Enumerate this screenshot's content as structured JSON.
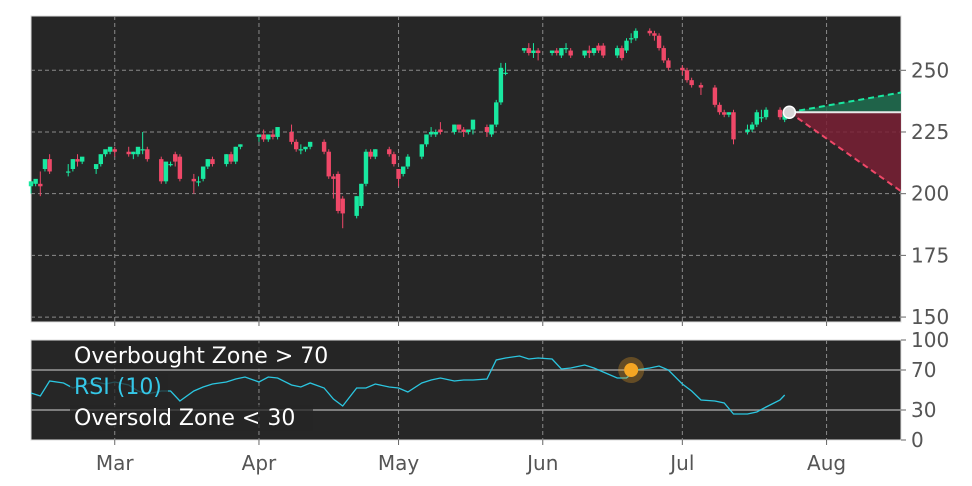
{
  "chart_data": [
    {
      "type": "candlestick",
      "panel": "price",
      "grid": true,
      "ylim": [
        148,
        272
      ],
      "xlim": [
        "2024-02-12",
        "2024-08-17"
      ],
      "y_ticks": [
        150,
        175,
        200,
        225,
        250
      ],
      "x_tick_labels": [
        {
          "date": "2024-03-01",
          "label": "Mar"
        },
        {
          "date": "2024-04-01",
          "label": "Apr"
        },
        {
          "date": "2024-05-01",
          "label": "May"
        },
        {
          "date": "2024-06-01",
          "label": "Jun"
        },
        {
          "date": "2024-07-01",
          "label": "Jul"
        },
        {
          "date": "2024-08-01",
          "label": "Aug"
        }
      ],
      "candles": [
        [
          "2024-02-12",
          203,
          205,
          200,
          204
        ],
        [
          "2024-02-13",
          204,
          206,
          203,
          205
        ],
        [
          "2024-02-14",
          204,
          203,
          209,
          199
        ],
        [
          "2024-02-15",
          210,
          214,
          209,
          213
        ],
        [
          "2024-02-16",
          214,
          209,
          216,
          208
        ],
        [
          "2024-02-20",
          209,
          209,
          212,
          207
        ],
        [
          "2024-02-21",
          210,
          214,
          209,
          214
        ],
        [
          "2024-02-22",
          214,
          213,
          216,
          211
        ],
        [
          "2024-02-23",
          213,
          215,
          212,
          214
        ],
        [
          "2024-02-26",
          210,
          212,
          208,
          211
        ],
        [
          "2024-02-27",
          212,
          216,
          211,
          216
        ],
        [
          "2024-02-28",
          216,
          218,
          215,
          217
        ],
        [
          "2024-02-29",
          217,
          219,
          216,
          218
        ],
        [
          "2024-03-01",
          218,
          217,
          219,
          215
        ],
        [
          "2024-03-04",
          217,
          216,
          219,
          215
        ],
        [
          "2024-03-05",
          216,
          217,
          214,
          217
        ],
        [
          "2024-03-06",
          216,
          219,
          215,
          218
        ],
        [
          "2024-03-07",
          218,
          218,
          225,
          216
        ],
        [
          "2024-03-08",
          218,
          214,
          219,
          213
        ],
        [
          "2024-03-11",
          214,
          205,
          215,
          204
        ],
        [
          "2024-03-12",
          205,
          213,
          204,
          212
        ],
        [
          "2024-03-13",
          212,
          212,
          213,
          211
        ],
        [
          "2024-03-14",
          216,
          213,
          217,
          211
        ],
        [
          "2024-03-15",
          215,
          206,
          216,
          205
        ],
        [
          "2024-03-18",
          206,
          205,
          208,
          200
        ],
        [
          "2024-03-19",
          205,
          205,
          207,
          203
        ],
        [
          "2024-03-20",
          206,
          211,
          205,
          211
        ],
        [
          "2024-03-21",
          211,
          214,
          210,
          214
        ],
        [
          "2024-03-22",
          214,
          212,
          215,
          211
        ],
        [
          "2024-03-25",
          212,
          216,
          211,
          216
        ],
        [
          "2024-03-26",
          216,
          213,
          217,
          212
        ],
        [
          "2024-03-27",
          213,
          219,
          212,
          219
        ],
        [
          "2024-03-28",
          219,
          220,
          218,
          220
        ],
        [
          "2024-04-01",
          223,
          224,
          221,
          224
        ],
        [
          "2024-04-02",
          224,
          222,
          226,
          221
        ],
        [
          "2024-04-03",
          222,
          224,
          221,
          223
        ],
        [
          "2024-04-04",
          224,
          223,
          226,
          222
        ],
        [
          "2024-04-05",
          223,
          227,
          222,
          226
        ],
        [
          "2024-04-08",
          225,
          221,
          228,
          220
        ],
        [
          "2024-04-09",
          221,
          218,
          222,
          217
        ],
        [
          "2024-04-10",
          218,
          218,
          220,
          216
        ],
        [
          "2024-04-11",
          218,
          219,
          217,
          219
        ],
        [
          "2024-04-12",
          219,
          221,
          218,
          221
        ],
        [
          "2024-04-15",
          221,
          217,
          222,
          216
        ],
        [
          "2024-04-16",
          217,
          207,
          218,
          206
        ],
        [
          "2024-04-17",
          207,
          206,
          208,
          198
        ],
        [
          "2024-04-18",
          208,
          193,
          209,
          192
        ],
        [
          "2024-04-19",
          198,
          192,
          199,
          186
        ],
        [
          "2024-04-22",
          191,
          199,
          190,
          199
        ],
        [
          "2024-04-23",
          195,
          204,
          194,
          204
        ],
        [
          "2024-04-24",
          204,
          217,
          203,
          218
        ],
        [
          "2024-04-25",
          217,
          215,
          218,
          214
        ],
        [
          "2024-04-26",
          215,
          218,
          214,
          218
        ],
        [
          "2024-04-29",
          218,
          216,
          219,
          215
        ],
        [
          "2024-04-30",
          216,
          212,
          217,
          211
        ],
        [
          "2024-05-01",
          210,
          206,
          210,
          203
        ],
        [
          "2024-05-02",
          208,
          211,
          207,
          210
        ],
        [
          "2024-05-03",
          211,
          215,
          210,
          216
        ],
        [
          "2024-05-06",
          215,
          220,
          214,
          220
        ],
        [
          "2024-05-07",
          220,
          224,
          219,
          224
        ],
        [
          "2024-05-08",
          224,
          225,
          223,
          227
        ],
        [
          "2024-05-09",
          224,
          225,
          223,
          226
        ],
        [
          "2024-05-10",
          226,
          225,
          229,
          224
        ],
        [
          "2024-05-13",
          225,
          228,
          224,
          228
        ],
        [
          "2024-05-14",
          228,
          226,
          228,
          225
        ],
        [
          "2024-05-15",
          226,
          225,
          227,
          223
        ],
        [
          "2024-05-16",
          225,
          226,
          224,
          226
        ],
        [
          "2024-05-17",
          226,
          230,
          224,
          227
        ],
        [
          "2024-05-20",
          227,
          225,
          228,
          223
        ],
        [
          "2024-05-21",
          224,
          228,
          223,
          226
        ],
        [
          "2024-05-22",
          228,
          237,
          227,
          238
        ],
        [
          "2024-05-23",
          237,
          251,
          236,
          253
        ],
        [
          "2024-05-24",
          249,
          249,
          253,
          248
        ],
        [
          "2024-05-28",
          258,
          259,
          257,
          259
        ],
        [
          "2024-05-29",
          259,
          257,
          261,
          256
        ],
        [
          "2024-05-30",
          257,
          258,
          261,
          255
        ],
        [
          "2024-05-31",
          258,
          257,
          259,
          254
        ],
        [
          "2024-06-03",
          257,
          258,
          256,
          258
        ],
        [
          "2024-06-04",
          258,
          257,
          259,
          256
        ],
        [
          "2024-06-05",
          256,
          259,
          255,
          259
        ],
        [
          "2024-06-06",
          259,
          259,
          261,
          257
        ],
        [
          "2024-06-07",
          258,
          256,
          259,
          255
        ],
        [
          "2024-06-10",
          256,
          258,
          255,
          258
        ],
        [
          "2024-06-11",
          258,
          257,
          260,
          255
        ],
        [
          "2024-06-12",
          257,
          259,
          256,
          259
        ],
        [
          "2024-06-13",
          260,
          258,
          261,
          257
        ],
        [
          "2024-06-14",
          260,
          256,
          261,
          255
        ],
        [
          "2024-06-17",
          256,
          259,
          255,
          260
        ],
        [
          "2024-06-18",
          259,
          255,
          260,
          254
        ],
        [
          "2024-06-19",
          258,
          262,
          257,
          263
        ],
        [
          "2024-06-20",
          263,
          263,
          265,
          261
        ],
        [
          "2024-06-21",
          263,
          266,
          262,
          267
        ],
        [
          "2024-06-24",
          266,
          265,
          267,
          264
        ],
        [
          "2024-06-25",
          265,
          264,
          266,
          262
        ],
        [
          "2024-06-26",
          264,
          259,
          265,
          258
        ],
        [
          "2024-06-27",
          259,
          254,
          260,
          253
        ],
        [
          "2024-06-28",
          254,
          251,
          255,
          250
        ],
        [
          "2024-07-01",
          251,
          250,
          252,
          248
        ],
        [
          "2024-07-02",
          250,
          246,
          251,
          245
        ],
        [
          "2024-07-03",
          246,
          244,
          247,
          243
        ],
        [
          "2024-07-05",
          244,
          243,
          245,
          240
        ],
        [
          "2024-07-08",
          243,
          236,
          244,
          235
        ],
        [
          "2024-07-09",
          236,
          233,
          237,
          232
        ],
        [
          "2024-07-10",
          233,
          232,
          234,
          231
        ],
        [
          "2024-07-11",
          232,
          233,
          231,
          233
        ],
        [
          "2024-07-12",
          233,
          222,
          234,
          220
        ],
        [
          "2024-07-15",
          225,
          226,
          224,
          228
        ],
        [
          "2024-07-16",
          226,
          228,
          225,
          229
        ],
        [
          "2024-07-17",
          228,
          233,
          227,
          234
        ],
        [
          "2024-07-18",
          231,
          231,
          234,
          229
        ],
        [
          "2024-07-19",
          231,
          234,
          230,
          235
        ],
        [
          "2024-07-22",
          234,
          231,
          235,
          230
        ],
        [
          "2024-07-23",
          230,
          233,
          229,
          234
        ]
      ],
      "projection": {
        "start": {
          "date": "2024-07-24",
          "value": 233
        },
        "end_date": "2024-08-17",
        "upper": 241,
        "lower": 201,
        "level": 233
      }
    },
    {
      "type": "line",
      "panel": "rsi",
      "grid": true,
      "ylim": [
        0,
        100
      ],
      "y_ticks": [
        0,
        30,
        70,
        100
      ],
      "legend": [
        "Overbought Zone > 70",
        "RSI (10)",
        "Oversold Zone < 30"
      ],
      "overbought": 70,
      "oversold": 30,
      "series": [
        {
          "name": "RSI (10)",
          "x": [
            "2024-02-12",
            "2024-02-14",
            "2024-02-16",
            "2024-02-19",
            "2024-02-21",
            "2024-02-23",
            "2024-02-26",
            "2024-02-28",
            "2024-03-01",
            "2024-03-04",
            "2024-03-06",
            "2024-03-08",
            "2024-03-11",
            "2024-03-13",
            "2024-03-15",
            "2024-03-18",
            "2024-03-20",
            "2024-03-22",
            "2024-03-25",
            "2024-03-27",
            "2024-03-29",
            "2024-04-01",
            "2024-04-03",
            "2024-04-05",
            "2024-04-08",
            "2024-04-10",
            "2024-04-12",
            "2024-04-15",
            "2024-04-17",
            "2024-04-19",
            "2024-04-22",
            "2024-04-24",
            "2024-04-26",
            "2024-04-29",
            "2024-05-01",
            "2024-05-03",
            "2024-05-06",
            "2024-05-08",
            "2024-05-10",
            "2024-05-13",
            "2024-05-15",
            "2024-05-17",
            "2024-05-20",
            "2024-05-22",
            "2024-05-24",
            "2024-05-27",
            "2024-05-29",
            "2024-05-31",
            "2024-06-03",
            "2024-06-05",
            "2024-06-07",
            "2024-06-10",
            "2024-06-12",
            "2024-06-14",
            "2024-06-17",
            "2024-06-19",
            "2024-06-21",
            "2024-06-24",
            "2024-06-26",
            "2024-06-28",
            "2024-07-01",
            "2024-07-03",
            "2024-07-05",
            "2024-07-08",
            "2024-07-10",
            "2024-07-12",
            "2024-07-15",
            "2024-07-17",
            "2024-07-19",
            "2024-07-22",
            "2024-07-23"
          ],
          "values": [
            47,
            44,
            59,
            57,
            52,
            55,
            58,
            56,
            58,
            55,
            49,
            46,
            49,
            49,
            39,
            49,
            53,
            56,
            58,
            61,
            63,
            58,
            63,
            62,
            55,
            53,
            57,
            52,
            41,
            34,
            52,
            52,
            56,
            53,
            52,
            48,
            57,
            60,
            62,
            59,
            60,
            60,
            61,
            80,
            82,
            84,
            81,
            82,
            81,
            71,
            72,
            75,
            72,
            68,
            62,
            62,
            70,
            72,
            74,
            70,
            56,
            49,
            40,
            39,
            37,
            26,
            26,
            28,
            33,
            40,
            45
          ]
        }
      ],
      "marker": {
        "date": "2024-06-20",
        "value": 70
      }
    }
  ]
}
